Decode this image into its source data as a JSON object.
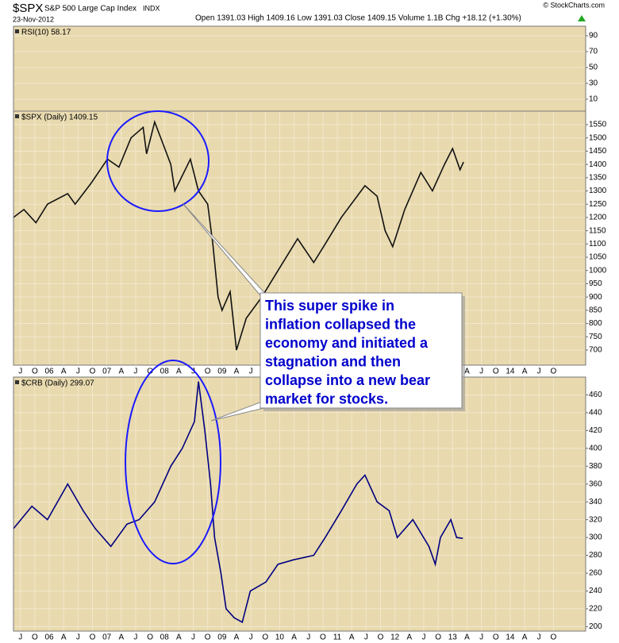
{
  "header": {
    "symbol": "$SPX",
    "name": "S&P 500 Large Cap Index",
    "exchange": "INDX",
    "date": "23-Nov-2012",
    "quote": "Open 1391.03 High 1409.16 Low 1391.03 Close 1409.15 Volume 1.1B Chg +18.12 (+1.30%)",
    "credit": "© StockCharts.com"
  },
  "chart_data": [
    {
      "type": "line",
      "title": "RSI(10) 58.17",
      "xlim": [
        2005.38,
        2015.31
      ],
      "ylim": [
        -5,
        102
      ],
      "yticks": [
        10,
        30,
        50,
        70,
        90
      ],
      "grid": true
    },
    {
      "type": "line",
      "title": "$SPX (Daily) 1409.15",
      "annotation": [
        "This super spike in",
        "inflation collapsed the",
        "economy and initiated a",
        "stagnation and then",
        "collapse into a new bear",
        "market for stocks."
      ],
      "xlim": [
        2005.38,
        2015.31
      ],
      "ylim": [
        643,
        1601
      ],
      "yticks": [
        700,
        750,
        800,
        850,
        900,
        950,
        1000,
        1050,
        1100,
        1150,
        1200,
        1250,
        1300,
        1350,
        1400,
        1450,
        1500,
        1550
      ],
      "xticks": [
        {
          "value": 2005.5,
          "label": "J"
        },
        {
          "value": 2005.75,
          "label": "O"
        },
        {
          "value": 2006,
          "label": "06"
        },
        {
          "value": 2006.25,
          "label": "A"
        },
        {
          "value": 2006.5,
          "label": "J"
        },
        {
          "value": 2006.75,
          "label": "O"
        },
        {
          "value": 2007,
          "label": "07"
        },
        {
          "value": 2007.25,
          "label": "A"
        },
        {
          "value": 2007.5,
          "label": "J"
        },
        {
          "value": 2007.75,
          "label": "O"
        },
        {
          "value": 2008,
          "label": "08"
        },
        {
          "value": 2008.25,
          "label": "A"
        },
        {
          "value": 2008.5,
          "label": "J"
        },
        {
          "value": 2008.75,
          "label": "O"
        },
        {
          "value": 2009,
          "label": "09"
        },
        {
          "value": 2009.25,
          "label": "A"
        },
        {
          "value": 2009.5,
          "label": "J"
        },
        {
          "value": 2009.75,
          "label": "O"
        },
        {
          "value": 2010,
          "label": "10"
        },
        {
          "value": 2010.25,
          "label": "A"
        },
        {
          "value": 2010.5,
          "label": "J"
        },
        {
          "value": 2010.75,
          "label": "O"
        },
        {
          "value": 2011,
          "label": "11"
        },
        {
          "value": 2011.25,
          "label": "A"
        },
        {
          "value": 2011.5,
          "label": "J"
        },
        {
          "value": 2011.75,
          "label": "O"
        },
        {
          "value": 2012,
          "label": "12"
        },
        {
          "value": 2012.25,
          "label": "A"
        },
        {
          "value": 2012.5,
          "label": "J"
        },
        {
          "value": 2012.75,
          "label": "O"
        },
        {
          "value": 2013,
          "label": "13"
        },
        {
          "value": 2013.25,
          "label": "A"
        },
        {
          "value": 2013.5,
          "label": "J"
        },
        {
          "value": 2013.75,
          "label": "O"
        },
        {
          "value": 2014,
          "label": "14"
        },
        {
          "value": 2014.25,
          "label": "A"
        },
        {
          "value": 2014.5,
          "label": "J"
        },
        {
          "value": 2014.75,
          "label": "O"
        }
      ],
      "grid": true,
      "series": [
        {
          "name": "$SPX",
          "color": "#111111",
          "x": [
            2005.38,
            2005.56,
            2005.77,
            2005.97,
            2006.32,
            2006.45,
            2006.73,
            2007.01,
            2007.21,
            2007.42,
            2007.63,
            2007.69,
            2007.83,
            2007.97,
            2008.11,
            2008.18,
            2008.45,
            2008.59,
            2008.75,
            2008.84,
            2008.93,
            2009.0,
            2009.14,
            2009.25,
            2009.42,
            2009.69,
            2009.97,
            2010.31,
            2010.59,
            2010.79,
            2011.07,
            2011.48,
            2011.69,
            2011.83,
            2011.96,
            2012.17,
            2012.45,
            2012.65,
            2012.86,
            2013.0,
            2013.13,
            2013.19
          ],
          "values": [
            1200,
            1230,
            1180,
            1250,
            1290,
            1250,
            1330,
            1420,
            1390,
            1500,
            1540,
            1440,
            1560,
            1480,
            1400,
            1300,
            1420,
            1300,
            1250,
            1100,
            900,
            850,
            920,
            700,
            820,
            900,
            1000,
            1120,
            1030,
            1100,
            1200,
            1320,
            1280,
            1150,
            1090,
            1230,
            1370,
            1300,
            1400,
            1460,
            1380,
            1409
          ]
        }
      ]
    },
    {
      "type": "line",
      "title": "$CRB (Daily) 299.07",
      "xlim": [
        2005.38,
        2015.31
      ],
      "ylim": [
        195,
        480
      ],
      "yticks": [
        200,
        220,
        240,
        260,
        280,
        300,
        320,
        340,
        360,
        380,
        400,
        420,
        440,
        460
      ],
      "xticks": [
        {
          "value": 2005.5,
          "label": "J"
        },
        {
          "value": 2005.75,
          "label": "O"
        },
        {
          "value": 2006,
          "label": "06"
        },
        {
          "value": 2006.25,
          "label": "A"
        },
        {
          "value": 2006.5,
          "label": "J"
        },
        {
          "value": 2006.75,
          "label": "O"
        },
        {
          "value": 2007,
          "label": "07"
        },
        {
          "value": 2007.25,
          "label": "A"
        },
        {
          "value": 2007.5,
          "label": "J"
        },
        {
          "value": 2007.75,
          "label": "O"
        },
        {
          "value": 2008,
          "label": "08"
        },
        {
          "value": 2008.25,
          "label": "A"
        },
        {
          "value": 2008.5,
          "label": "J"
        },
        {
          "value": 2008.75,
          "label": "O"
        },
        {
          "value": 2009,
          "label": "09"
        },
        {
          "value": 2009.25,
          "label": "A"
        },
        {
          "value": 2009.5,
          "label": "J"
        },
        {
          "value": 2009.75,
          "label": "O"
        },
        {
          "value": 2010,
          "label": "10"
        },
        {
          "value": 2010.25,
          "label": "A"
        },
        {
          "value": 2010.5,
          "label": "J"
        },
        {
          "value": 2010.75,
          "label": "O"
        },
        {
          "value": 2011,
          "label": "11"
        },
        {
          "value": 2011.25,
          "label": "A"
        },
        {
          "value": 2011.5,
          "label": "J"
        },
        {
          "value": 2011.75,
          "label": "O"
        },
        {
          "value": 2012,
          "label": "12"
        },
        {
          "value": 2012.25,
          "label": "A"
        },
        {
          "value": 2012.5,
          "label": "J"
        },
        {
          "value": 2012.75,
          "label": "O"
        },
        {
          "value": 2013,
          "label": "13"
        },
        {
          "value": 2013.25,
          "label": "A"
        },
        {
          "value": 2013.5,
          "label": "J"
        },
        {
          "value": 2013.75,
          "label": "O"
        },
        {
          "value": 2014,
          "label": "14"
        },
        {
          "value": 2014.25,
          "label": "A"
        },
        {
          "value": 2014.5,
          "label": "J"
        },
        {
          "value": 2014.75,
          "label": "O"
        }
      ],
      "grid": true,
      "series": [
        {
          "name": "$CRB",
          "color": "#000080",
          "x": [
            2005.38,
            2005.7,
            2005.97,
            2006.32,
            2006.59,
            2006.8,
            2007.07,
            2007.35,
            2007.56,
            2007.83,
            2008.11,
            2008.31,
            2008.52,
            2008.59,
            2008.7,
            2008.8,
            2008.87,
            2008.98,
            2009.07,
            2009.21,
            2009.35,
            2009.49,
            2009.76,
            2009.97,
            2010.24,
            2010.59,
            2010.79,
            2011.07,
            2011.34,
            2011.48,
            2011.69,
            2011.9,
            2012.04,
            2012.31,
            2012.59,
            2012.7,
            2012.79,
            2012.97,
            2013.07,
            2013.18
          ],
          "values": [
            310,
            335,
            320,
            360,
            330,
            310,
            290,
            315,
            320,
            340,
            380,
            400,
            430,
            475,
            420,
            360,
            300,
            260,
            220,
            210,
            205,
            240,
            250,
            270,
            275,
            280,
            300,
            330,
            360,
            370,
            340,
            330,
            300,
            320,
            290,
            270,
            300,
            320,
            300,
            299
          ]
        }
      ]
    }
  ]
}
